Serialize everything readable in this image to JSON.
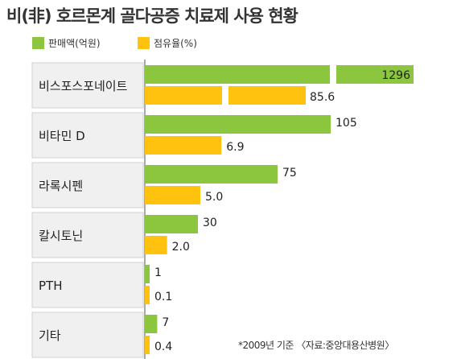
{
  "colors": {
    "sales": "#8cc63f",
    "share": "#ffc20e",
    "label_box": "#f0f0f0",
    "label_border": "#d0d0d0",
    "axis": "#555555"
  },
  "chart_data": {
    "type": "bar",
    "orientation": "horizontal",
    "title": "비(非) 호르몬계 골다공증 치료제 사용 현황",
    "categories": [
      "비스포스포네이트",
      "비타민 D",
      "라록시펜",
      "칼시토닌",
      "PTH",
      "기타"
    ],
    "series": [
      {
        "name": "판매액(억원)",
        "values": [
          1296,
          105,
          75,
          30,
          1,
          7
        ],
        "labels": [
          "1296",
          "105",
          "75",
          "30",
          "1",
          "7"
        ],
        "color": "#8cc63f"
      },
      {
        "name": "점유율(%)",
        "values": [
          85.6,
          6.9,
          5.0,
          2.0,
          0.1,
          0.4
        ],
        "labels": [
          "85.6",
          "6.9",
          "5.0",
          "2.0",
          "0.1",
          "0.4"
        ],
        "color": "#ffc20e"
      }
    ],
    "axis_break": {
      "categories": [
        "비스포스포네이트"
      ],
      "note": "bars shortened with a gap (broken scale)"
    },
    "legend_position": "top-left",
    "grid": false
  },
  "footer": {
    "note": "*2009년 기준 〈자료:중앙대용산병원〉"
  }
}
